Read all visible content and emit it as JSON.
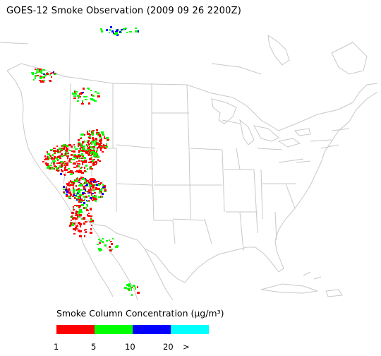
{
  "title": "GOES-12 Smoke Observation (2009 09 26  2200Z)",
  "legend": {
    "label": "Smoke Column Concentration (µg/m³)",
    "colors": [
      "#ff0000",
      "#00ff00",
      "#0000ff",
      "#00ffff"
    ],
    "ticks": [
      "1",
      "5",
      "10",
      "20",
      ">"
    ]
  },
  "map": {
    "region": "Contiguous United States with southern Canada and northern Mexico",
    "boundary_color": "#c8c8c8",
    "smoke_plumes": [
      {
        "area": "Northern California / Nevada",
        "level": "1-5 and 5-10"
      },
      {
        "area": "Southern Nevada / Utah",
        "level": "10-20"
      },
      {
        "area": "Idaho / Montana",
        "level": "1-5 and 5-10"
      },
      {
        "area": "Arizona / Baja California",
        "level": "1-5"
      }
    ]
  }
}
